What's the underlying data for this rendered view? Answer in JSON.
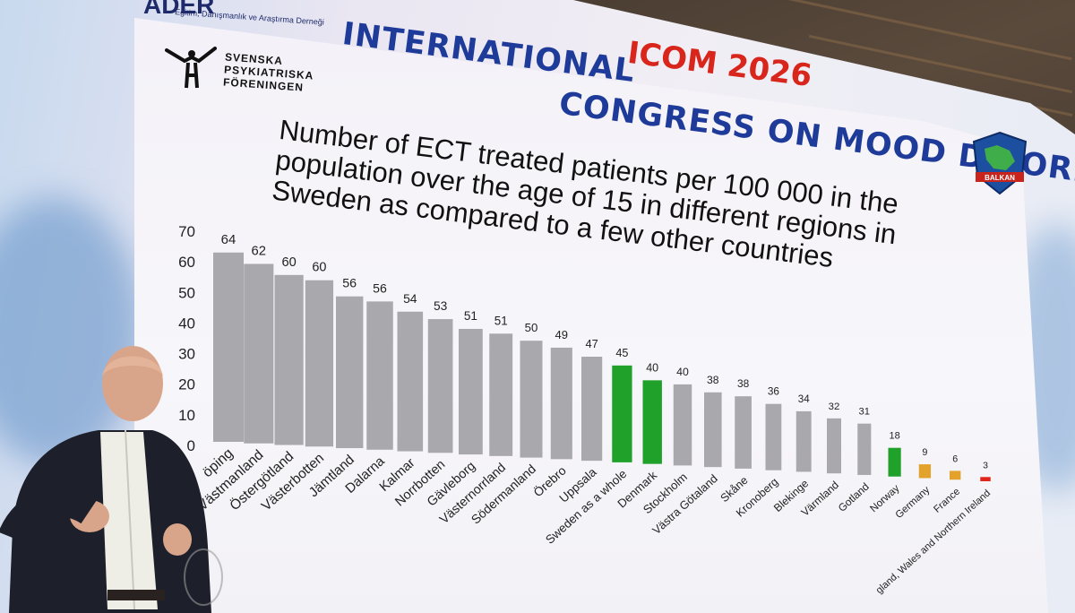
{
  "header": {
    "org_logo_text": "ADER",
    "org_logo_subtitle": "Eğitim, Danışmanlık ve Araştırma Derneği",
    "congress_line1": "INTERNATIONAL",
    "congress_line2": "CONGRESS ON MOOD DISORDERS",
    "event_name": "ICOM 2026",
    "society_name_lines": [
      "SVENSKA",
      "PSYKIATRISKA",
      "FÖRENINGEN"
    ],
    "balkan_badge_text": "BALKAN"
  },
  "chart_data": {
    "type": "bar",
    "title_lines": [
      "Number of ECT treated patients per 100 000 in the",
      "population over the age of 15 in different regions in",
      "Sweden as compared to a few other countries"
    ],
    "y_ticks": [
      0,
      10,
      20,
      30,
      40,
      50,
      60,
      70
    ],
    "ylim": [
      0,
      70
    ],
    "categories": [
      "öping",
      "Västmanland",
      "Östergötland",
      "Västerbotten",
      "Jämtland",
      "Dalarna",
      "Kalmar",
      "Norrbotten",
      "Gävleborg",
      "Västernorrland",
      "Södermanland",
      "Örebro",
      "Uppsala",
      "Sweden as a whole",
      "Denmark",
      "Stockholm",
      "Västra Götaland",
      "Skåne",
      "Kronoberg",
      "Blekinge",
      "Värmland",
      "Gotland",
      "Norway",
      "Germany",
      "France",
      "gland, Wales and Northern Ireland"
    ],
    "values": [
      64,
      62,
      60,
      60,
      56,
      56,
      54,
      53,
      51,
      51,
      50,
      49,
      47,
      45,
      40,
      40,
      38,
      38,
      36,
      34,
      32,
      31,
      18,
      9,
      6,
      3
    ],
    "bar_colors": [
      "#a9a9ad",
      "#a9a9ad",
      "#a9a9ad",
      "#a9a9ad",
      "#a9a9ad",
      "#a9a9ad",
      "#a9a9ad",
      "#a9a9ad",
      "#a9a9ad",
      "#a9a9ad",
      "#a9a9ad",
      "#a9a9ad",
      "#a9a9ad",
      "#1fa12a",
      "#1fa12a",
      "#a9a9ad",
      "#a9a9ad",
      "#a9a9ad",
      "#a9a9ad",
      "#a9a9ad",
      "#a9a9ad",
      "#a9a9ad",
      "#1fa12a",
      "#e3a22c",
      "#e3a22c",
      "#e0261c"
    ],
    "grid": false
  },
  "colors": {
    "title_blue": "#1e3b9a",
    "event_red": "#d9261c",
    "bar_gray": "#a9a9ad",
    "bar_green": "#1fa12a",
    "bar_orange": "#e3a22c",
    "bar_red": "#e0261c"
  }
}
